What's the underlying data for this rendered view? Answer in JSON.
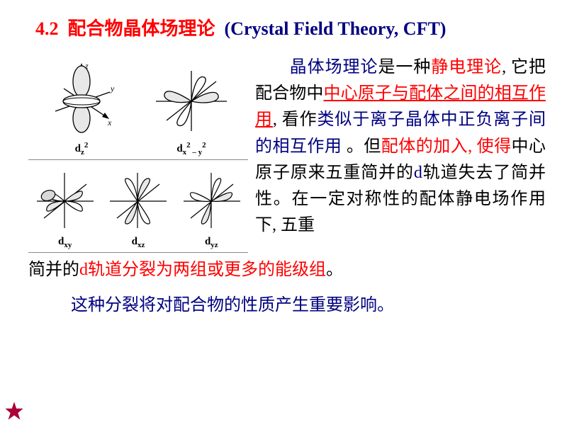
{
  "title": {
    "section_number": "4.2",
    "cn": "配合物晶体场理论",
    "en": "(Crystal  Field Theory, CFT)",
    "section_color": "#ff0000",
    "cn_color": "#ff0000",
    "en_color": "#000080"
  },
  "orbitals": {
    "top": [
      {
        "label_html": "d<sub>z</sub><sup>2</sup>",
        "name": "dz2"
      },
      {
        "label_html": "d<sub>x</sub><sup>2</sup><sub> – y</sub><sup>2</sup>",
        "name": "dx2-y2"
      }
    ],
    "bottom": [
      {
        "label_html": "d<sub>xy</sub>",
        "name": "dxy"
      },
      {
        "label_html": "d<sub>xz</sub>",
        "name": "dxz"
      },
      {
        "label_html": "d<sub>yz</sub>",
        "name": "dyz"
      }
    ],
    "stroke": "#000000",
    "fill_light": "#ffffff",
    "fill_dark": "#d0d0d0"
  },
  "paragraph": {
    "parts": [
      {
        "text": "晶体场理论",
        "style": "emph",
        "indent": true
      },
      {
        "text": "是一种",
        "style": "black"
      },
      {
        "text": "静电理论",
        "style": "red"
      },
      {
        "text": ", 它把配合物中",
        "style": "black"
      },
      {
        "text": "中心原子与配体之间的相互作用",
        "style": "red-u"
      },
      {
        "text": ", 看作",
        "style": "black"
      },
      {
        "text": "类似于离子晶体中正负离子间的相互作用",
        "style": "emph"
      },
      {
        "text": " 。但",
        "style": "black"
      },
      {
        "text": "配体的加入, 使得",
        "style": "red"
      },
      {
        "text": "中心原子原来五重简并的",
        "style": "black"
      },
      {
        "text": "d",
        "style": "emph"
      },
      {
        "text": "轨道失去了简并性。在一定对称性的配体静电场作用下, 五重",
        "style": "black"
      }
    ],
    "continuation": [
      {
        "text": "简并的",
        "style": "black"
      },
      {
        "text": "d",
        "style": "red"
      },
      {
        "text": "轨道分裂为两组或更多的能级组",
        "style": "red"
      },
      {
        "text": "。",
        "style": "black"
      }
    ],
    "final_line": "这种分裂将对配合物的性质产生重要影响。"
  },
  "colors": {
    "background": "#ffffff",
    "navy": "#000080",
    "red": "#ff0000",
    "black": "#000000"
  },
  "star": {
    "fill": "#c00040",
    "size": 28
  }
}
